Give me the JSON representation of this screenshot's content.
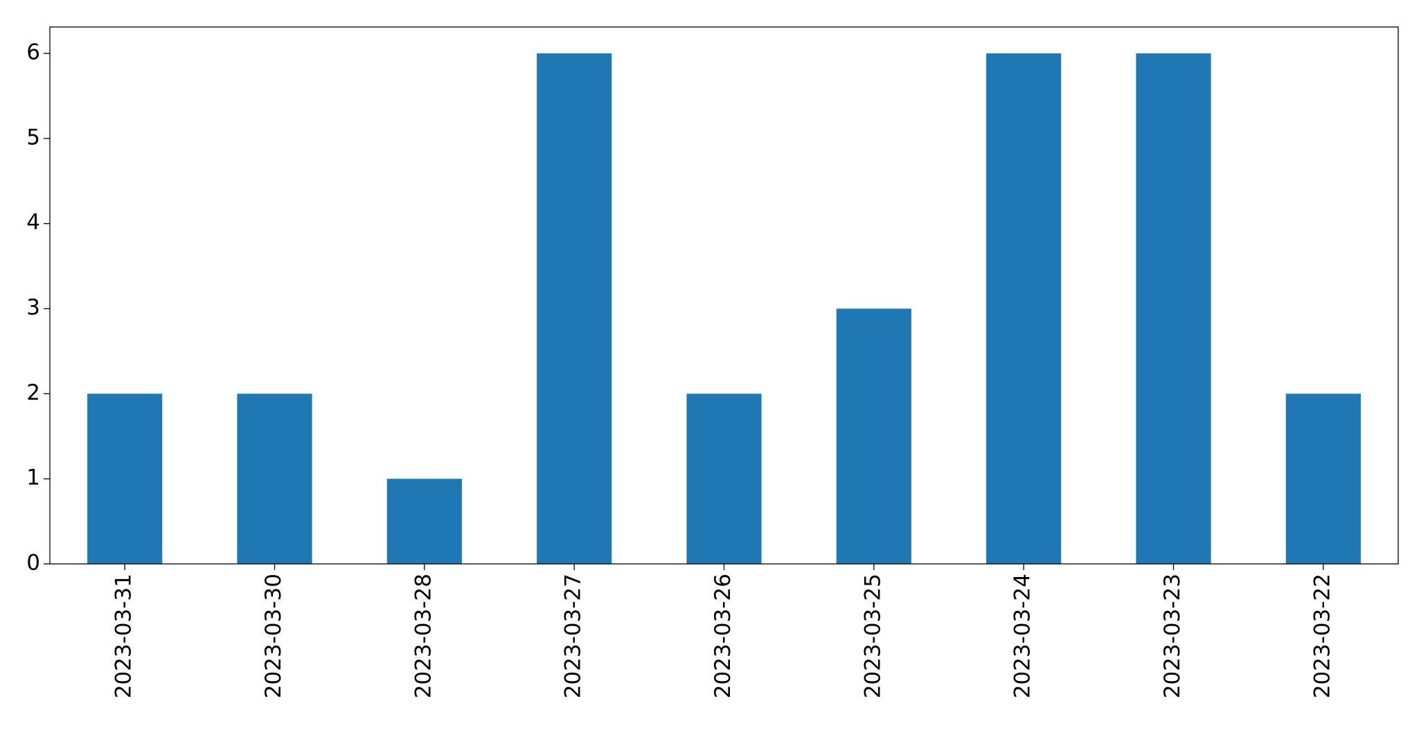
{
  "chart_data": {
    "type": "bar",
    "categories": [
      "2023-03-31",
      "2023-03-30",
      "2023-03-28",
      "2023-03-27",
      "2023-03-26",
      "2023-03-25",
      "2023-03-24",
      "2023-03-23",
      "2023-03-22"
    ],
    "values": [
      2,
      2,
      1,
      6,
      2,
      3,
      6,
      6,
      2
    ],
    "color": "#1f77b4",
    "ylim": [
      0,
      6.31
    ],
    "yticks": [
      0,
      1,
      2,
      3,
      4,
      5,
      6
    ],
    "grid": false
  }
}
